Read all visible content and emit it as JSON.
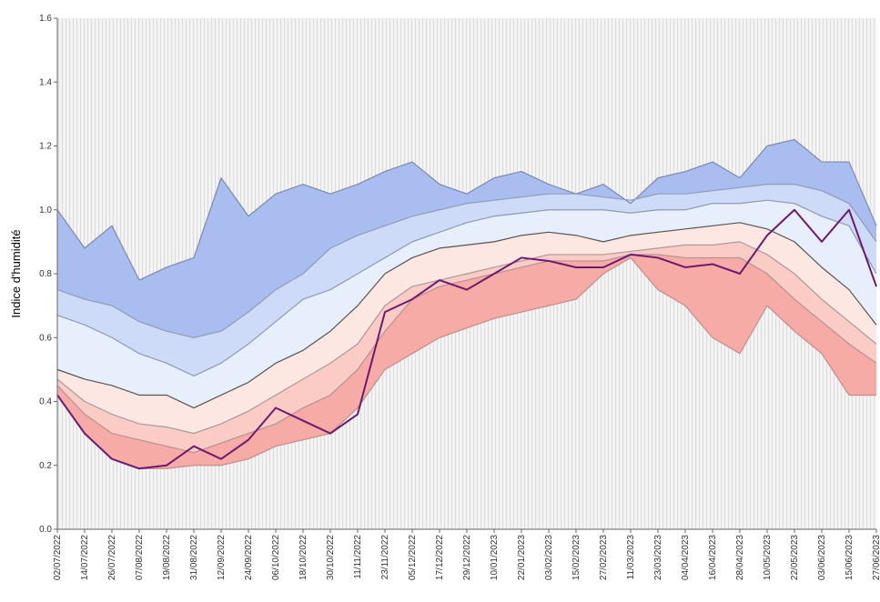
{
  "chart_data": {
    "type": "line",
    "y_label": "Indice d'humidité",
    "categories": [
      "02/07/2022",
      "14/07/2022",
      "26/07/2022",
      "07/08/2022",
      "19/08/2022",
      "31/08/2022",
      "12/09/2022",
      "24/09/2022",
      "06/10/2022",
      "18/10/2022",
      "30/10/2022",
      "11/11/2022",
      "23/11/2022",
      "05/12/2022",
      "17/12/2022",
      "29/12/2022",
      "10/01/2023",
      "22/01/2023",
      "03/02/2023",
      "15/02/2023",
      "27/02/2023",
      "11/03/2023",
      "23/03/2023",
      "04/04/2023",
      "16/04/2023",
      "28/04/2023",
      "10/05/2023",
      "22/05/2023",
      "03/06/2023",
      "15/06/2023",
      "27/06/2023"
    ],
    "ylim": [
      0,
      1.6
    ],
    "yticks": [
      {
        "value": 0,
        "label": "0.0"
      },
      0.2,
      0.4,
      0.6,
      0.8,
      {
        "value": 1,
        "label": "1.0"
      },
      1.2,
      1.4,
      1.6
    ],
    "series": [
      {
        "color": "#7d8aa3",
        "fill": "#a9bdf0",
        "values": [
          1.0,
          0.88,
          0.95,
          0.78,
          0.82,
          0.85,
          1.1,
          0.98,
          1.05,
          1.08,
          1.05,
          1.08,
          1.12,
          1.15,
          1.08,
          1.05,
          1.1,
          1.12,
          1.08,
          1.05,
          1.08,
          1.02,
          1.1,
          1.12,
          1.15,
          1.1,
          1.2,
          1.22,
          1.15,
          1.15,
          0.95
        ]
      },
      {
        "color": "#8e9cb8",
        "fill": "#cddaf8",
        "values": [
          0.75,
          0.72,
          0.7,
          0.65,
          0.62,
          0.6,
          0.62,
          0.68,
          0.75,
          0.8,
          0.88,
          0.92,
          0.95,
          0.98,
          1.0,
          1.02,
          1.03,
          1.04,
          1.05,
          1.05,
          1.04,
          1.03,
          1.05,
          1.05,
          1.06,
          1.07,
          1.08,
          1.08,
          1.06,
          1.02,
          0.9
        ]
      },
      {
        "color": "#8f9bb3",
        "fill": "#e7eefc",
        "values": [
          0.67,
          0.64,
          0.6,
          0.55,
          0.52,
          0.48,
          0.52,
          0.58,
          0.65,
          0.72,
          0.75,
          0.8,
          0.85,
          0.9,
          0.93,
          0.96,
          0.98,
          0.99,
          1.0,
          1.0,
          1.0,
          0.99,
          1.0,
          1.0,
          1.02,
          1.02,
          1.03,
          1.02,
          0.98,
          0.95,
          0.8
        ]
      },
      {
        "color": "#555555",
        "fill": "#fde7e3",
        "values": [
          0.5,
          0.47,
          0.45,
          0.42,
          0.42,
          0.38,
          0.42,
          0.46,
          0.52,
          0.56,
          0.62,
          0.7,
          0.8,
          0.85,
          0.88,
          0.89,
          0.9,
          0.92,
          0.93,
          0.92,
          0.9,
          0.92,
          0.93,
          0.94,
          0.95,
          0.96,
          0.94,
          0.9,
          0.82,
          0.75,
          0.64
        ]
      },
      {
        "color": "#a89a9a",
        "fill": "#fbcbc5",
        "values": [
          0.47,
          0.4,
          0.36,
          0.33,
          0.32,
          0.3,
          0.33,
          0.37,
          0.42,
          0.47,
          0.52,
          0.58,
          0.7,
          0.76,
          0.78,
          0.8,
          0.82,
          0.84,
          0.86,
          0.86,
          0.86,
          0.87,
          0.88,
          0.89,
          0.89,
          0.9,
          0.86,
          0.8,
          0.72,
          0.65,
          0.58
        ]
      },
      {
        "color": "#b09494",
        "fill": "#f7aba6",
        "values": [
          0.45,
          0.36,
          0.3,
          0.28,
          0.26,
          0.24,
          0.27,
          0.3,
          0.33,
          0.38,
          0.42,
          0.5,
          0.62,
          0.72,
          0.76,
          0.78,
          0.8,
          0.82,
          0.84,
          0.84,
          0.84,
          0.86,
          0.86,
          0.85,
          0.85,
          0.85,
          0.8,
          0.72,
          0.65,
          0.58,
          0.52
        ]
      },
      {
        "color": "#c78a8a",
        "values": [
          0.42,
          0.3,
          0.22,
          0.19,
          0.19,
          0.2,
          0.2,
          0.22,
          0.26,
          0.28,
          0.3,
          0.38,
          0.5,
          0.55,
          0.6,
          0.63,
          0.66,
          0.68,
          0.7,
          0.72,
          0.8,
          0.85,
          0.75,
          0.7,
          0.6,
          0.55,
          0.7,
          0.62,
          0.55,
          0.42,
          0.42
        ]
      },
      {
        "color": "#6b1a6e",
        "width": 2,
        "values": [
          0.42,
          0.3,
          0.22,
          0.19,
          0.2,
          0.26,
          0.22,
          0.28,
          0.38,
          0.34,
          0.3,
          0.36,
          0.68,
          0.72,
          0.78,
          0.75,
          0.8,
          0.85,
          0.84,
          0.82,
          0.82,
          0.86,
          0.85,
          0.82,
          0.83,
          0.8,
          0.92,
          1.0,
          0.9,
          1.0,
          0.76
        ]
      }
    ]
  }
}
